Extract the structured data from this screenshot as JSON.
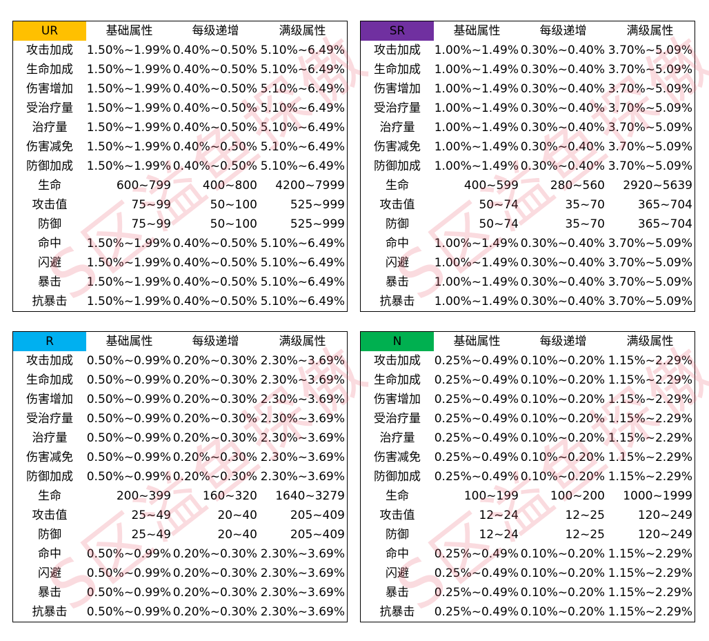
{
  "headers": [
    "基础属性",
    "每级递增",
    "满级属性"
  ],
  "watermark": "S区溢鱼探傲",
  "tables": [
    {
      "grade": "UR",
      "color": "#FFC000",
      "rows": [
        [
          "攻击加成",
          "1.50%~1.99%",
          "0.40%~0.50%",
          "5.10%~6.49%"
        ],
        [
          "生命加成",
          "1.50%~1.99%",
          "0.40%~0.50%",
          "5.10%~6.49%"
        ],
        [
          "伤害增加",
          "1.50%~1.99%",
          "0.40%~0.50%",
          "5.10%~6.49%"
        ],
        [
          "受治疗量",
          "1.50%~1.99%",
          "0.40%~0.50%",
          "5.10%~6.49%"
        ],
        [
          "治疗量",
          "1.50%~1.99%",
          "0.40%~0.50%",
          "5.10%~6.49%"
        ],
        [
          "伤害减免",
          "1.50%~1.99%",
          "0.40%~0.50%",
          "5.10%~6.49%"
        ],
        [
          "防御加成",
          "1.50%~1.99%",
          "0.40%~0.50%",
          "5.10%~6.49%"
        ],
        [
          "生命",
          "600~799",
          "400~800",
          "4200~7999"
        ],
        [
          "攻击值",
          "75~99",
          "50~100",
          "525~999"
        ],
        [
          "防御",
          "75~99",
          "50~100",
          "525~999"
        ],
        [
          "命中",
          "1.50%~1.99%",
          "0.40%~0.50%",
          "5.10%~6.49%"
        ],
        [
          "闪避",
          "1.50%~1.99%",
          "0.40%~0.50%",
          "5.10%~6.49%"
        ],
        [
          "暴击",
          "1.50%~1.99%",
          "0.40%~0.50%",
          "5.10%~6.49%"
        ],
        [
          "抗暴击",
          "1.50%~1.99%",
          "0.40%~0.50%",
          "5.10%~6.49%"
        ]
      ]
    },
    {
      "grade": "SR",
      "color": "#7030A0",
      "rows": [
        [
          "攻击加成",
          "1.00%~1.49%",
          "0.30%~0.40%",
          "3.70%~5.09%"
        ],
        [
          "生命加成",
          "1.00%~1.49%",
          "0.30%~0.40%",
          "3.70%~5.09%"
        ],
        [
          "伤害增加",
          "1.00%~1.49%",
          "0.30%~0.40%",
          "3.70%~5.09%"
        ],
        [
          "受治疗量",
          "1.00%~1.49%",
          "0.30%~0.40%",
          "3.70%~5.09%"
        ],
        [
          "治疗量",
          "1.00%~1.49%",
          "0.30%~0.40%",
          "3.70%~5.09%"
        ],
        [
          "伤害减免",
          "1.00%~1.49%",
          "0.30%~0.40%",
          "3.70%~5.09%"
        ],
        [
          "防御加成",
          "1.00%~1.49%",
          "0.30%~0.40%",
          "3.70%~5.09%"
        ],
        [
          "生命",
          "400~599",
          "280~560",
          "2920~5639"
        ],
        [
          "攻击值",
          "50~74",
          "35~70",
          "365~704"
        ],
        [
          "防御",
          "50~74",
          "35~70",
          "365~704"
        ],
        [
          "命中",
          "1.00%~1.49%",
          "0.30%~0.40%",
          "3.70%~5.09%"
        ],
        [
          "闪避",
          "1.00%~1.49%",
          "0.30%~0.40%",
          "3.70%~5.09%"
        ],
        [
          "暴击",
          "1.00%~1.49%",
          "0.30%~0.40%",
          "3.70%~5.09%"
        ],
        [
          "抗暴击",
          "1.00%~1.49%",
          "0.30%~0.40%",
          "3.70%~5.09%"
        ]
      ]
    },
    {
      "grade": "R",
      "color": "#00B0F0",
      "rows": [
        [
          "攻击加成",
          "0.50%~0.99%",
          "0.20%~0.30%",
          "2.30%~3.69%"
        ],
        [
          "生命加成",
          "0.50%~0.99%",
          "0.20%~0.30%",
          "2.30%~3.69%"
        ],
        [
          "伤害增加",
          "0.50%~0.99%",
          "0.20%~0.30%",
          "2.30%~3.69%"
        ],
        [
          "受治疗量",
          "0.50%~0.99%",
          "0.20%~0.30%",
          "2.30%~3.69%"
        ],
        [
          "治疗量",
          "0.50%~0.99%",
          "0.20%~0.30%",
          "2.30%~3.69%"
        ],
        [
          "伤害减免",
          "0.50%~0.99%",
          "0.20%~0.30%",
          "2.30%~3.69%"
        ],
        [
          "防御加成",
          "0.50%~0.99%",
          "0.20%~0.30%",
          "2.30%~3.69%"
        ],
        [
          "生命",
          "200~399",
          "160~320",
          "1640~3279"
        ],
        [
          "攻击值",
          "25~49",
          "20~40",
          "205~409"
        ],
        [
          "防御",
          "25~49",
          "20~40",
          "205~409"
        ],
        [
          "命中",
          "0.50%~0.99%",
          "0.20%~0.30%",
          "2.30%~3.69%"
        ],
        [
          "闪避",
          "0.50%~0.99%",
          "0.20%~0.30%",
          "2.30%~3.69%"
        ],
        [
          "暴击",
          "0.50%~0.99%",
          "0.20%~0.30%",
          "2.30%~3.69%"
        ],
        [
          "抗暴击",
          "0.50%~0.99%",
          "0.20%~0.30%",
          "2.30%~3.69%"
        ]
      ]
    },
    {
      "grade": "N",
      "color": "#00B050",
      "rows": [
        [
          "攻击加成",
          "0.25%~0.49%",
          "0.10%~0.20%",
          "1.15%~2.29%"
        ],
        [
          "生命加成",
          "0.25%~0.49%",
          "0.10%~0.20%",
          "1.15%~2.29%"
        ],
        [
          "伤害增加",
          "0.25%~0.49%",
          "0.10%~0.20%",
          "1.15%~2.29%"
        ],
        [
          "受治疗量",
          "0.25%~0.49%",
          "0.10%~0.20%",
          "1.15%~2.29%"
        ],
        [
          "治疗量",
          "0.25%~0.49%",
          "0.10%~0.20%",
          "1.15%~2.29%"
        ],
        [
          "伤害减免",
          "0.25%~0.49%",
          "0.10%~0.20%",
          "1.15%~2.29%"
        ],
        [
          "防御加成",
          "0.25%~0.49%",
          "0.10%~0.20%",
          "1.15%~2.29%"
        ],
        [
          "生命",
          "100~199",
          "100~200",
          "1000~1999"
        ],
        [
          "攻击值",
          "12~24",
          "12~25",
          "120~249"
        ],
        [
          "防御",
          "12~24",
          "12~25",
          "120~249"
        ],
        [
          "命中",
          "0.25%~0.49%",
          "0.10%~0.20%",
          "1.15%~2.29%"
        ],
        [
          "闪避",
          "0.25%~0.49%",
          "0.10%~0.20%",
          "1.15%~2.29%"
        ],
        [
          "暴击",
          "0.25%~0.49%",
          "0.10%~0.20%",
          "1.15%~2.29%"
        ],
        [
          "抗暴击",
          "0.25%~0.49%",
          "0.10%~0.20%",
          "1.15%~2.29%"
        ]
      ]
    }
  ]
}
